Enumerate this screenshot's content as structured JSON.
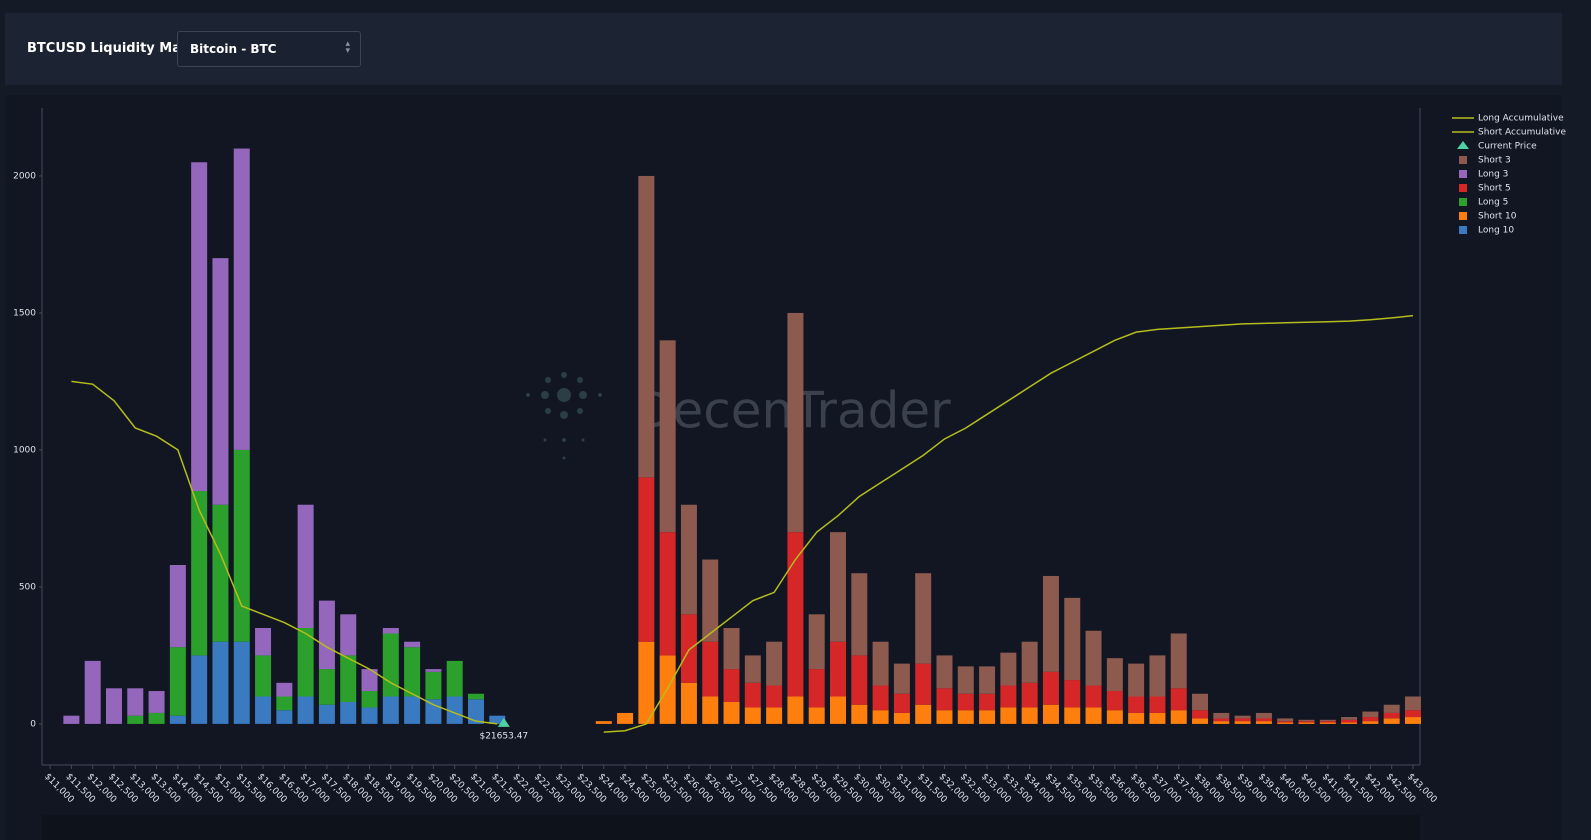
{
  "header": {
    "title": "BTCUSD Liquidity Map",
    "select": "Bitcoin - BTC"
  },
  "chart_data": {
    "type": "bar",
    "stacked": true,
    "watermark": "DecenTrader",
    "x": [
      11500,
      12000,
      12500,
      13000,
      13500,
      14000,
      14500,
      15000,
      15500,
      16000,
      16500,
      17000,
      17500,
      18000,
      18500,
      19000,
      19500,
      20000,
      20500,
      21000,
      21500,
      24000,
      24500,
      25000,
      25500,
      26000,
      26500,
      27000,
      27500,
      28000,
      28500,
      29000,
      29500,
      30000,
      30500,
      31000,
      31500,
      32000,
      32500,
      33000,
      33500,
      34000,
      34500,
      35000,
      35500,
      36000,
      36500,
      37000,
      37500,
      38000,
      38500,
      39000,
      39500,
      40000,
      40500,
      41000,
      41500,
      42000,
      42500,
      43000
    ],
    "series": [
      {
        "name": "Long Accumulative",
        "kind": "line",
        "color": "#b5bd1c",
        "values": [
          1250,
          1240,
          1180,
          1080,
          1050,
          1000,
          780,
          620,
          430,
          400,
          370,
          330,
          280,
          240,
          200,
          150,
          110,
          70,
          40,
          10,
          0,
          null,
          null,
          null,
          null,
          null,
          null,
          null,
          null,
          null,
          null,
          null,
          null,
          null,
          null,
          null,
          null,
          null,
          null,
          null,
          null,
          null,
          null,
          null,
          null,
          null,
          null,
          null,
          null,
          null,
          null,
          null,
          null,
          null,
          null,
          null,
          null,
          null,
          null,
          null
        ]
      },
      {
        "name": "Short Accumulative",
        "kind": "line",
        "color": "#b5bd1c",
        "values": [
          null,
          null,
          null,
          null,
          null,
          null,
          null,
          null,
          null,
          null,
          null,
          null,
          null,
          null,
          null,
          null,
          null,
          null,
          null,
          null,
          null,
          -30,
          -25,
          0,
          130,
          270,
          330,
          390,
          450,
          480,
          600,
          700,
          760,
          830,
          880,
          930,
          980,
          1040,
          1080,
          1130,
          1180,
          1230,
          1280,
          1320,
          1360,
          1400,
          1430,
          1440,
          1445,
          1450,
          1455,
          1460,
          1462,
          1464,
          1466,
          1468,
          1470,
          1475,
          1482,
          1490
        ]
      },
      {
        "name": "Short 3",
        "color": "#8c5a4e",
        "values": [
          0,
          0,
          0,
          0,
          0,
          0,
          0,
          0,
          0,
          0,
          0,
          0,
          0,
          0,
          0,
          0,
          0,
          0,
          0,
          0,
          0,
          0,
          0,
          1100,
          700,
          400,
          300,
          150,
          100,
          160,
          800,
          200,
          400,
          300,
          160,
          110,
          330,
          120,
          100,
          100,
          120,
          150,
          350,
          300,
          200,
          120,
          120,
          150,
          200,
          60,
          20,
          10,
          20,
          10,
          5,
          5,
          10,
          20,
          30,
          50
        ]
      },
      {
        "name": "Long 3",
        "color": "#9467bd",
        "values": [
          30,
          230,
          130,
          100,
          80,
          300,
          1200,
          900,
          1100,
          100,
          50,
          450,
          250,
          150,
          80,
          20,
          20,
          10,
          0,
          0,
          0,
          0,
          0,
          0,
          0,
          0,
          0,
          0,
          0,
          0,
          0,
          0,
          0,
          0,
          0,
          0,
          0,
          0,
          0,
          0,
          0,
          0,
          0,
          0,
          0,
          0,
          0,
          0,
          0,
          0,
          0,
          0,
          0,
          0,
          0,
          0,
          0,
          0,
          0,
          0
        ]
      },
      {
        "name": "Short 5",
        "color": "#d62728",
        "values": [
          0,
          0,
          0,
          0,
          0,
          0,
          0,
          0,
          0,
          0,
          0,
          0,
          0,
          0,
          0,
          0,
          0,
          0,
          0,
          0,
          0,
          0,
          0,
          600,
          450,
          250,
          200,
          120,
          90,
          80,
          600,
          140,
          200,
          180,
          90,
          70,
          150,
          80,
          60,
          60,
          80,
          90,
          120,
          100,
          80,
          70,
          60,
          60,
          80,
          30,
          10,
          10,
          10,
          5,
          5,
          5,
          10,
          15,
          20,
          25
        ]
      },
      {
        "name": "Long 5",
        "color": "#2ca02c",
        "values": [
          0,
          0,
          0,
          30,
          40,
          250,
          600,
          500,
          700,
          150,
          50,
          250,
          130,
          170,
          60,
          230,
          180,
          100,
          130,
          20,
          0,
          0,
          0,
          0,
          0,
          0,
          0,
          0,
          0,
          0,
          0,
          0,
          0,
          0,
          0,
          0,
          0,
          0,
          0,
          0,
          0,
          0,
          0,
          0,
          0,
          0,
          0,
          0,
          0,
          0,
          0,
          0,
          0,
          0,
          0,
          0,
          0,
          0,
          0,
          0
        ]
      },
      {
        "name": "Short 10",
        "color": "#ff7f0e",
        "values": [
          0,
          0,
          0,
          0,
          0,
          0,
          0,
          0,
          0,
          0,
          0,
          0,
          0,
          0,
          0,
          0,
          0,
          0,
          0,
          0,
          0,
          10,
          40,
          300,
          250,
          150,
          100,
          80,
          60,
          60,
          100,
          60,
          100,
          70,
          50,
          40,
          70,
          50,
          50,
          50,
          60,
          60,
          70,
          60,
          60,
          50,
          40,
          40,
          50,
          20,
          10,
          10,
          10,
          5,
          5,
          5,
          5,
          10,
          20,
          25
        ]
      },
      {
        "name": "Long 10",
        "color": "#3a7ac0",
        "values": [
          0,
          0,
          0,
          0,
          0,
          30,
          250,
          300,
          300,
          100,
          50,
          100,
          70,
          80,
          60,
          100,
          100,
          90,
          100,
          90,
          30,
          0,
          0,
          0,
          0,
          0,
          0,
          0,
          0,
          0,
          0,
          0,
          0,
          0,
          0,
          0,
          0,
          0,
          0,
          0,
          0,
          0,
          0,
          0,
          0,
          0,
          0,
          0,
          0,
          0,
          0,
          0,
          0,
          0,
          0,
          0,
          0,
          0,
          0,
          0
        ]
      }
    ],
    "current_price": {
      "name": "Current Price",
      "value": 21653.47,
      "label": "$21653.47",
      "color": "#4fd1a5"
    },
    "xlim": [
      10810,
      43165
    ],
    "ylim": [
      -150,
      2248
    ],
    "yticks": [
      0,
      500,
      1000,
      1500,
      2000
    ],
    "xticks": [
      {
        "value": 11000,
        "label": "$11,000"
      },
      {
        "value": 11500,
        "label": "$11,500"
      },
      {
        "value": 12000,
        "label": "$12,000"
      },
      {
        "value": 12500,
        "label": "$12,500"
      },
      {
        "value": 13000,
        "label": "$13,000"
      },
      {
        "value": 13500,
        "label": "$13,500"
      },
      {
        "value": 14000,
        "label": "$14,000"
      },
      {
        "value": 14500,
        "label": "$14,500"
      },
      {
        "value": 15000,
        "label": "$15,000"
      },
      {
        "value": 15500,
        "label": "$15,500"
      },
      {
        "value": 16000,
        "label": "$16,000"
      },
      {
        "value": 16500,
        "label": "$16,500"
      },
      {
        "value": 17000,
        "label": "$17,000"
      },
      {
        "value": 17500,
        "label": "$17,500"
      },
      {
        "value": 18000,
        "label": "$18,000"
      },
      {
        "value": 18500,
        "label": "$18,500"
      },
      {
        "value": 19000,
        "label": "$19,000"
      },
      {
        "value": 19500,
        "label": "$19,500"
      },
      {
        "value": 20000,
        "label": "$20,000"
      },
      {
        "value": 20500,
        "label": "$20,500"
      },
      {
        "value": 21000,
        "label": "$21,000"
      },
      {
        "value": 21500,
        "label": "$21,500"
      },
      {
        "value": 22000,
        "label": "$22,000"
      },
      {
        "value": 22500,
        "label": "$22,500"
      },
      {
        "value": 23000,
        "label": "$23,000"
      },
      {
        "value": 23500,
        "label": "$23,500"
      },
      {
        "value": 24000,
        "label": "$24,000"
      },
      {
        "value": 24500,
        "label": "$24,500"
      },
      {
        "value": 25000,
        "label": "$25,000"
      },
      {
        "value": 25500,
        "label": "$25,500"
      },
      {
        "value": 26000,
        "label": "$26,000"
      },
      {
        "value": 26500,
        "label": "$26,500"
      },
      {
        "value": 27000,
        "label": "$27,000"
      },
      {
        "value": 27500,
        "label": "$27,500"
      },
      {
        "value": 28000,
        "label": "$28,000"
      },
      {
        "value": 28500,
        "label": "$28,500"
      },
      {
        "value": 29000,
        "label": "$29,000"
      },
      {
        "value": 29500,
        "label": "$29,500"
      },
      {
        "value": 30000,
        "label": "$30,000"
      },
      {
        "value": 30500,
        "label": "$30,500"
      },
      {
        "value": 31000,
        "label": "$31,000"
      },
      {
        "value": 31500,
        "label": "$31,500"
      },
      {
        "value": 32000,
        "label": "$32,000"
      },
      {
        "value": 32500,
        "label": "$32,500"
      },
      {
        "value": 33000,
        "label": "$33,000"
      },
      {
        "value": 33500,
        "label": "$33,500"
      },
      {
        "value": 34000,
        "label": "$34,000"
      },
      {
        "value": 34500,
        "label": "$34,500"
      },
      {
        "value": 35000,
        "label": "$35,000"
      },
      {
        "value": 35500,
        "label": "$35,500"
      },
      {
        "value": 36000,
        "label": "$36,000"
      },
      {
        "value": 36500,
        "label": "$36,500"
      },
      {
        "value": 37000,
        "label": "$37,000"
      },
      {
        "value": 37500,
        "label": "$37,500"
      },
      {
        "value": 38000,
        "label": "$38,000"
      },
      {
        "value": 38500,
        "label": "$38,500"
      },
      {
        "value": 39000,
        "label": "$39,000"
      },
      {
        "value": 39500,
        "label": "$39,500"
      },
      {
        "value": 40000,
        "label": "$40,000"
      },
      {
        "value": 40500,
        "label": "$40,500"
      },
      {
        "value": 41000,
        "label": "$41,000"
      },
      {
        "value": 41500,
        "label": "$41,500"
      },
      {
        "value": 42000,
        "label": "$42,000"
      },
      {
        "value": 42500,
        "label": "$42,500"
      },
      {
        "value": 43000,
        "label": "$43,000"
      }
    ],
    "legend": "top-right"
  }
}
